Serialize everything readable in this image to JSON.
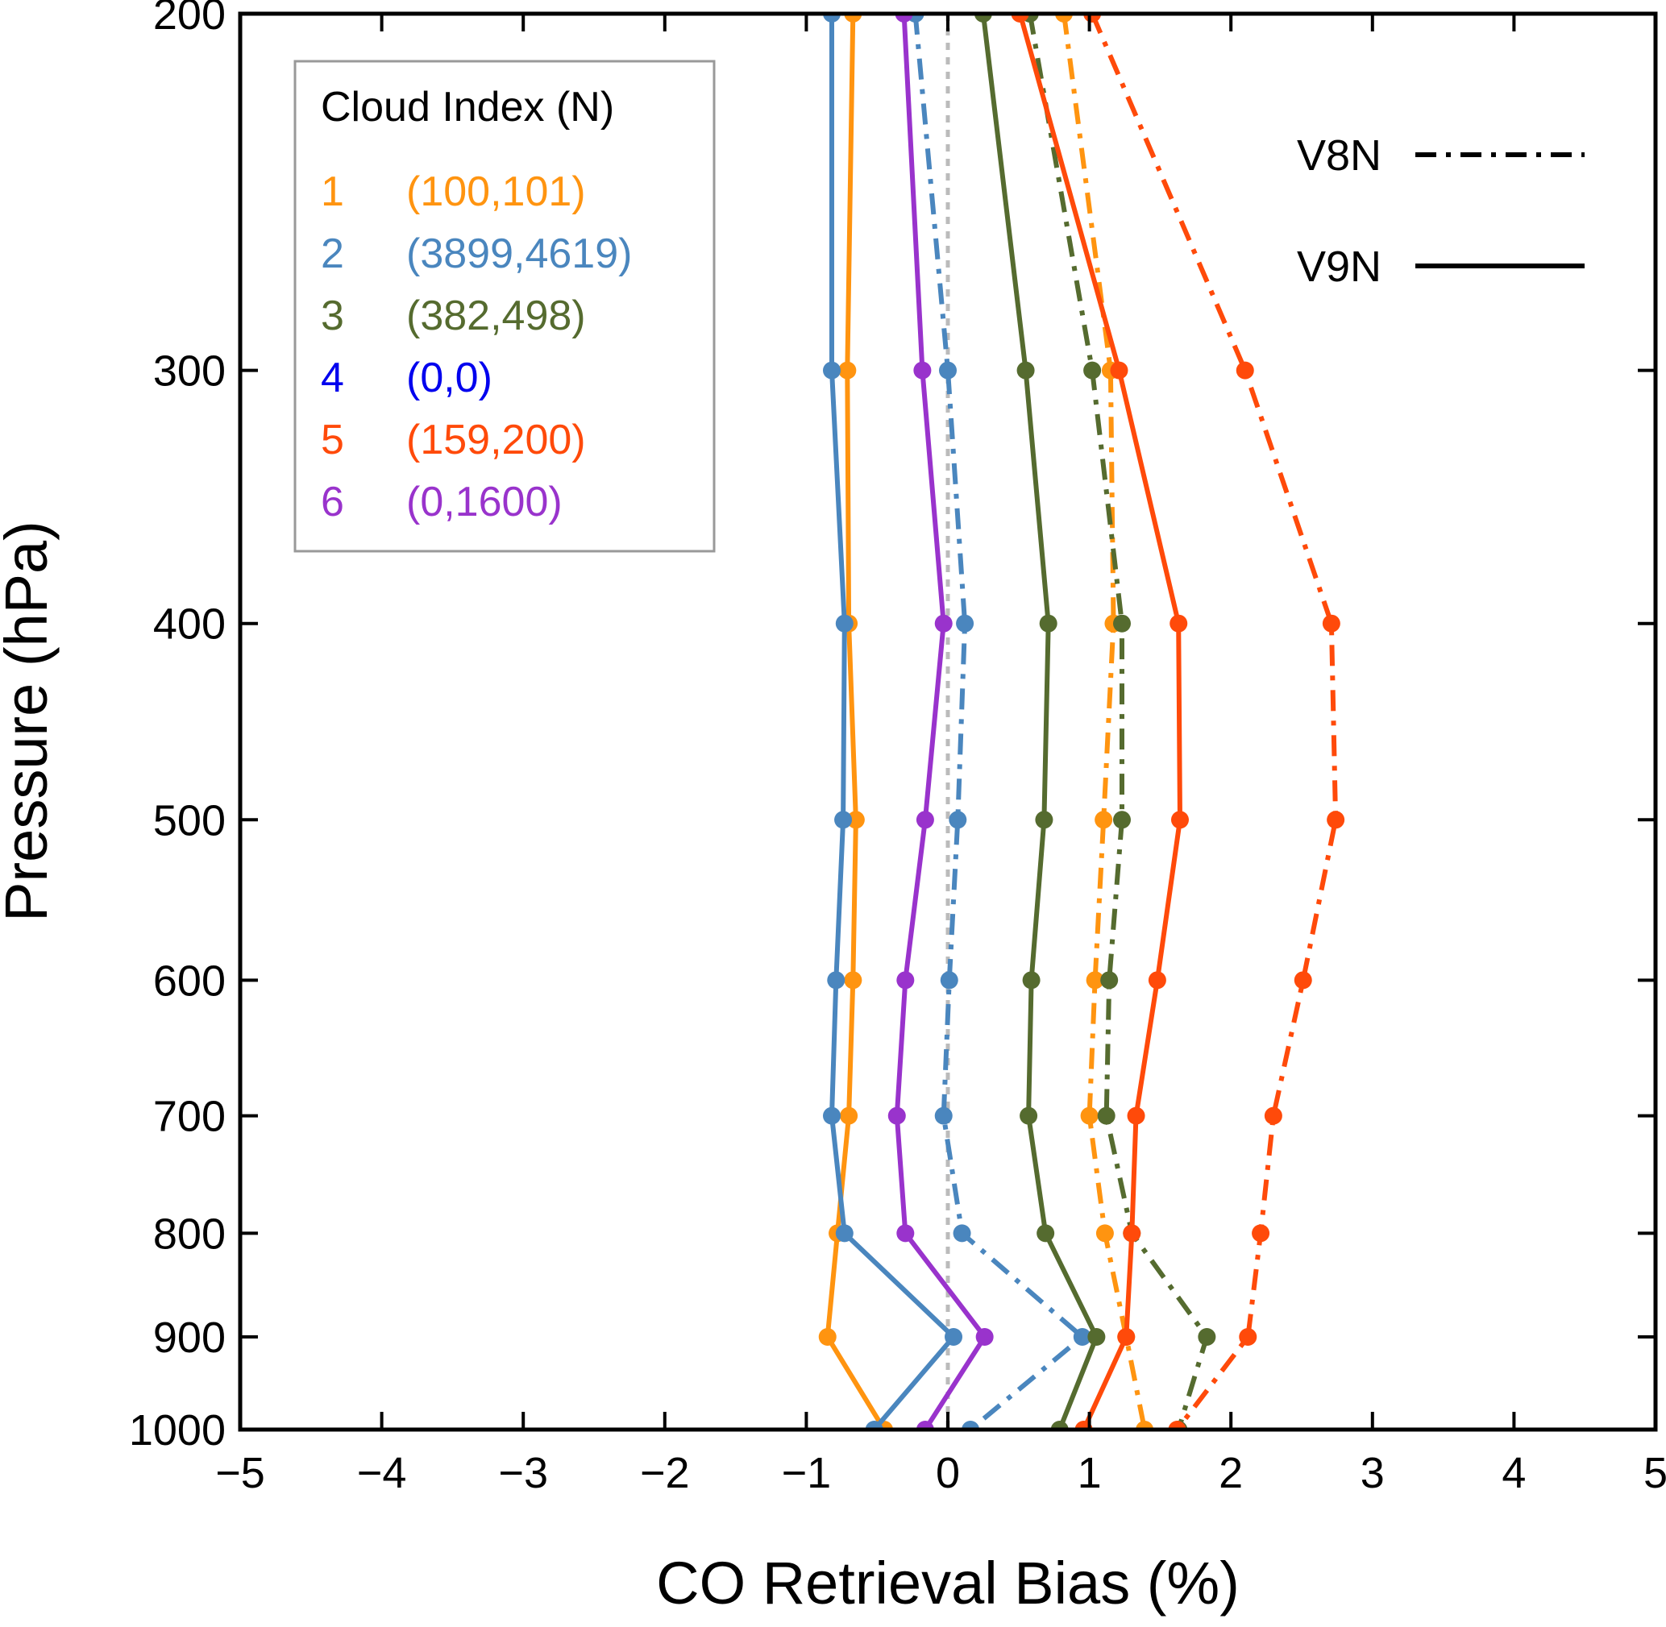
{
  "chart_data": {
    "type": "line",
    "xlabel": "CO Retrieval Bias (%)",
    "ylabel": "Pressure (hPa)",
    "xlim": [
      -5,
      5
    ],
    "ylim": [
      1000,
      200
    ],
    "y_scale": "log",
    "x_ticks": [
      -5,
      -4,
      -3,
      -2,
      -1,
      0,
      1,
      2,
      3,
      4,
      5
    ],
    "x_tick_labels": [
      "−5",
      "−4",
      "−3",
      "−2",
      "−1",
      "0",
      "1",
      "2",
      "3",
      "4",
      "5"
    ],
    "y_ticks": [
      200,
      300,
      400,
      500,
      600,
      700,
      800,
      900,
      1000
    ],
    "y_tick_labels": [
      "200",
      "300",
      "400",
      "500",
      "600",
      "700",
      "800",
      "900",
      "1000"
    ],
    "reference_line": {
      "x": 0,
      "style": "dotted",
      "color": "#bbbbbb"
    },
    "legend": {
      "title": "Cloud Index (N)",
      "placement": "top-left",
      "entries": [
        {
          "index": "1",
          "count": "(100,101)",
          "color": "#ff9410"
        },
        {
          "index": "2",
          "count": "(3899,4619)",
          "color": "#4a86be"
        },
        {
          "index": "3",
          "count": "(382,498)",
          "color": "#556b2f"
        },
        {
          "index": "4",
          "count": "(0,0)",
          "color": "#0000ee"
        },
        {
          "index": "5",
          "count": "(159,200)",
          "color": "#ff4a0a"
        },
        {
          "index": "6",
          "count": "(0,1600)",
          "color": "#9933cc"
        }
      ]
    },
    "style_legend": {
      "placement": "top-right",
      "entries": [
        {
          "label": "V8N",
          "line_style": "dash-dot"
        },
        {
          "label": "V9N",
          "line_style": "solid"
        }
      ]
    },
    "pressure_levels": [
      200,
      300,
      400,
      500,
      600,
      700,
      800,
      900,
      1000
    ],
    "series": [
      {
        "cloud_index": "1",
        "version": "V8N",
        "color": "#ff9410",
        "x": [
          0.82,
          1.15,
          1.17,
          1.1,
          1.04,
          1.0,
          1.11,
          1.26,
          1.39
        ]
      },
      {
        "cloud_index": "1",
        "version": "V9N",
        "color": "#ff9410",
        "x": [
          -0.67,
          -0.71,
          -0.7,
          -0.65,
          -0.67,
          -0.7,
          -0.78,
          -0.85,
          -0.45
        ]
      },
      {
        "cloud_index": "2",
        "version": "V8N",
        "color": "#4a86be",
        "x": [
          -0.23,
          0.0,
          0.12,
          0.07,
          0.01,
          -0.03,
          0.1,
          0.95,
          0.16
        ]
      },
      {
        "cloud_index": "2",
        "version": "V9N",
        "color": "#4a86be",
        "x": [
          -0.82,
          -0.82,
          -0.73,
          -0.74,
          -0.79,
          -0.82,
          -0.73,
          0.04,
          -0.52
        ]
      },
      {
        "cloud_index": "3",
        "version": "V8N",
        "color": "#556b2f",
        "x": [
          0.58,
          1.02,
          1.23,
          1.23,
          1.14,
          1.12,
          1.3,
          1.83,
          1.63
        ]
      },
      {
        "cloud_index": "3",
        "version": "V9N",
        "color": "#556b2f",
        "x": [
          0.25,
          0.55,
          0.71,
          0.68,
          0.59,
          0.57,
          0.69,
          1.05,
          0.79
        ]
      },
      {
        "cloud_index": "5",
        "version": "V8N",
        "color": "#ff4a0a",
        "x": [
          1.02,
          2.1,
          2.71,
          2.74,
          2.51,
          2.3,
          2.21,
          2.12,
          1.62
        ]
      },
      {
        "cloud_index": "5",
        "version": "V9N",
        "color": "#ff4a0a",
        "x": [
          0.51,
          1.21,
          1.63,
          1.64,
          1.48,
          1.33,
          1.3,
          1.26,
          0.96
        ]
      },
      {
        "cloud_index": "6",
        "version": "V9N",
        "color": "#9933cc",
        "x": [
          -0.31,
          -0.18,
          -0.03,
          -0.16,
          -0.3,
          -0.36,
          -0.3,
          0.26,
          -0.16
        ]
      }
    ]
  }
}
